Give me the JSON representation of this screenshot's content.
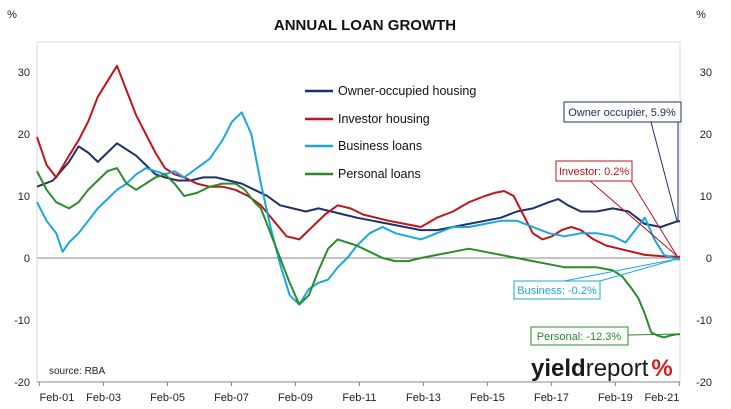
{
  "chart_data": {
    "type": "line",
    "title": "ANNUAL LOAN GROWTH",
    "y_unit_left": "%",
    "y_unit_right": "%",
    "ylim": [
      -20,
      35
    ],
    "yticks": [
      -20,
      -10,
      0,
      10,
      20,
      30
    ],
    "xlim": [
      2001.0,
      2021.1
    ],
    "xticks": [
      {
        "label": "Feb-01",
        "x": 2001.08
      },
      {
        "label": "Feb-03",
        "x": 2003.08
      },
      {
        "label": "Feb-05",
        "x": 2005.08
      },
      {
        "label": "Feb-07",
        "x": 2007.08
      },
      {
        "label": "Feb-09",
        "x": 2009.08
      },
      {
        "label": "Feb-11",
        "x": 2011.08
      },
      {
        "label": "Feb-13",
        "x": 2013.08
      },
      {
        "label": "Feb-15",
        "x": 2015.08
      },
      {
        "label": "Feb-17",
        "x": 2017.08
      },
      {
        "label": "Feb-19",
        "x": 2019.08
      },
      {
        "label": "Feb-21",
        "x": 2021.08
      }
    ],
    "grid": false,
    "legend_position": "top-center",
    "source": "source: RBA",
    "series": [
      {
        "name": "Owner-occupied housing",
        "color": "#1f2f6b",
        "x": [
          2001.0,
          2001.5,
          2002.0,
          2002.3,
          2002.6,
          2002.9,
          2003.2,
          2003.5,
          2003.8,
          2004.1,
          2004.4,
          2004.7,
          2005.0,
          2005.4,
          2005.8,
          2006.2,
          2006.6,
          2007.0,
          2007.4,
          2007.8,
          2008.2,
          2008.6,
          2009.0,
          2009.4,
          2009.8,
          2010.2,
          2010.6,
          2011.0,
          2011.5,
          2012.0,
          2012.5,
          2013.0,
          2013.5,
          2014.0,
          2014.5,
          2015.0,
          2015.5,
          2016.0,
          2016.5,
          2017.0,
          2017.3,
          2017.6,
          2018.0,
          2018.5,
          2019.0,
          2019.5,
          2020.0,
          2020.5,
          2021.0,
          2021.1
        ],
        "values": [
          11.5,
          12.5,
          15.5,
          18.0,
          17.0,
          15.5,
          17.0,
          18.5,
          17.5,
          16.5,
          15.0,
          13.5,
          13.0,
          12.5,
          12.5,
          13.0,
          13.0,
          12.5,
          12.0,
          11.0,
          10.0,
          8.5,
          8.0,
          7.5,
          8.0,
          7.5,
          7.0,
          6.5,
          6.0,
          5.5,
          5.0,
          4.5,
          4.5,
          5.0,
          5.5,
          6.0,
          6.5,
          7.5,
          8.0,
          9.0,
          9.5,
          8.5,
          7.5,
          7.5,
          8.0,
          7.5,
          5.5,
          5.0,
          5.9,
          5.9
        ]
      },
      {
        "name": "Investor housing",
        "color": "#c0151b",
        "x": [
          2001.0,
          2001.3,
          2001.6,
          2002.0,
          2002.3,
          2002.6,
          2002.9,
          2003.2,
          2003.5,
          2003.8,
          2004.1,
          2004.4,
          2004.7,
          2005.0,
          2005.3,
          2005.6,
          2006.0,
          2006.4,
          2006.8,
          2007.2,
          2007.6,
          2008.0,
          2008.4,
          2008.8,
          2009.2,
          2009.6,
          2010.0,
          2010.4,
          2010.8,
          2011.2,
          2011.6,
          2012.0,
          2012.5,
          2013.0,
          2013.5,
          2014.0,
          2014.5,
          2015.0,
          2015.3,
          2015.6,
          2015.9,
          2016.2,
          2016.5,
          2016.8,
          2017.1,
          2017.4,
          2017.7,
          2018.0,
          2018.4,
          2018.8,
          2019.2,
          2019.6,
          2020.0,
          2020.5,
          2021.0,
          2021.1
        ],
        "values": [
          19.5,
          15.0,
          13.0,
          16.5,
          19.0,
          22.0,
          26.0,
          28.5,
          31.0,
          27.0,
          23.0,
          20.0,
          17.0,
          14.5,
          13.5,
          13.0,
          12.0,
          11.5,
          11.5,
          11.0,
          10.0,
          8.5,
          6.0,
          3.5,
          3.0,
          5.0,
          7.0,
          8.5,
          8.0,
          7.0,
          6.5,
          6.0,
          5.5,
          5.0,
          6.5,
          7.5,
          9.0,
          10.0,
          10.5,
          10.8,
          10.0,
          7.0,
          4.0,
          3.0,
          3.5,
          4.5,
          5.0,
          4.5,
          3.0,
          2.0,
          1.5,
          1.0,
          0.5,
          0.3,
          0.2,
          0.2
        ]
      },
      {
        "name": "Business loans",
        "color": "#1aa7e0",
        "x": [
          2001.0,
          2001.3,
          2001.6,
          2001.8,
          2002.0,
          2002.3,
          2002.6,
          2002.9,
          2003.2,
          2003.5,
          2003.8,
          2004.1,
          2004.4,
          2004.7,
          2005.0,
          2005.3,
          2005.6,
          2006.0,
          2006.4,
          2006.8,
          2007.1,
          2007.4,
          2007.7,
          2008.0,
          2008.3,
          2008.6,
          2008.9,
          2009.2,
          2009.5,
          2009.8,
          2010.1,
          2010.4,
          2010.7,
          2011.0,
          2011.4,
          2011.8,
          2012.2,
          2012.6,
          2013.0,
          2013.5,
          2014.0,
          2014.5,
          2015.0,
          2015.5,
          2016.0,
          2016.5,
          2017.0,
          2017.5,
          2018.0,
          2018.5,
          2019.0,
          2019.4,
          2019.7,
          2020.0,
          2020.3,
          2020.6,
          2021.0,
          2021.1
        ],
        "values": [
          9.0,
          6.0,
          4.0,
          1.0,
          2.5,
          4.0,
          6.0,
          8.0,
          9.5,
          11.0,
          12.0,
          13.5,
          14.5,
          14.0,
          13.5,
          14.0,
          13.0,
          14.5,
          16.0,
          19.0,
          22.0,
          23.5,
          20.0,
          12.0,
          5.0,
          -1.0,
          -6.0,
          -7.5,
          -5.0,
          -4.0,
          -3.5,
          -1.5,
          0.0,
          2.0,
          4.0,
          5.0,
          4.0,
          3.5,
          3.0,
          4.0,
          5.0,
          5.0,
          5.5,
          6.0,
          6.0,
          5.0,
          4.0,
          3.5,
          4.0,
          4.0,
          3.5,
          2.5,
          4.5,
          6.5,
          3.0,
          0.5,
          -0.2,
          -0.2
        ]
      },
      {
        "name": "Personal loans",
        "color": "#2a8c2a",
        "x": [
          2001.0,
          2001.3,
          2001.6,
          2002.0,
          2002.3,
          2002.6,
          2002.9,
          2003.2,
          2003.5,
          2003.8,
          2004.1,
          2004.4,
          2004.7,
          2005.0,
          2005.3,
          2005.6,
          2006.0,
          2006.4,
          2006.8,
          2007.2,
          2007.5,
          2007.8,
          2008.0,
          2008.3,
          2008.6,
          2008.9,
          2009.2,
          2009.5,
          2009.8,
          2010.1,
          2010.4,
          2010.7,
          2011.0,
          2011.4,
          2011.8,
          2012.2,
          2012.6,
          2013.0,
          2013.5,
          2014.0,
          2014.5,
          2015.0,
          2015.5,
          2016.0,
          2016.5,
          2017.0,
          2017.5,
          2018.0,
          2018.5,
          2019.0,
          2019.3,
          2019.6,
          2019.8,
          2020.0,
          2020.2,
          2020.4,
          2020.6,
          2020.8,
          2021.0,
          2021.1
        ],
        "values": [
          14.0,
          11.0,
          9.0,
          8.0,
          9.0,
          11.0,
          12.5,
          14.0,
          14.5,
          12.0,
          11.0,
          12.0,
          13.0,
          13.5,
          12.0,
          10.0,
          10.5,
          11.5,
          12.0,
          12.0,
          11.0,
          9.0,
          8.0,
          4.0,
          0.0,
          -4.0,
          -7.5,
          -6.0,
          -2.0,
          1.5,
          3.0,
          2.5,
          2.0,
          1.0,
          0.0,
          -0.5,
          -0.5,
          0.0,
          0.5,
          1.0,
          1.5,
          1.0,
          0.5,
          0.0,
          -0.5,
          -1.0,
          -1.5,
          -1.5,
          -1.5,
          -2.0,
          -3.0,
          -5.0,
          -6.5,
          -9.0,
          -12.0,
          -12.5,
          -12.8,
          -12.5,
          -12.3,
          -12.3
        ]
      }
    ],
    "callouts": [
      {
        "label": "Owner occupier, 5.9%",
        "color": "#1f2f6b",
        "target_y": 5.9
      },
      {
        "label": "Investor: 0.2%",
        "color": "#c0151b",
        "target_y": 0.2
      },
      {
        "label": "Business: -0.2%",
        "color": "#1aa7e0",
        "target_y": -0.2
      },
      {
        "label": "Personal: -12.3%",
        "color": "#2a8c2a",
        "target_y": -12.3
      }
    ]
  },
  "logo": {
    "word1": "yield",
    "word2": "report",
    "symbol": "%"
  }
}
